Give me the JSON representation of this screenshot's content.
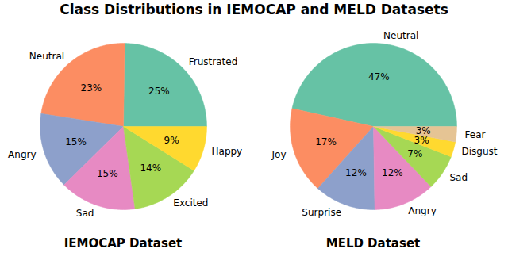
{
  "title": "Class Distributions in IEMOCAP and MELD Datasets",
  "chart_data": [
    {
      "type": "pie",
      "title": "IEMOCAP Dataset",
      "categories": [
        "Frustrated",
        "Neutral",
        "Angry",
        "Sad",
        "Excited",
        "Happy"
      ],
      "values": [
        25,
        23,
        15,
        15,
        14,
        9
      ],
      "value_labels": [
        "25%",
        "23%",
        "15%",
        "15%",
        "14%",
        "9%"
      ],
      "colors": [
        "#66c2a5",
        "#fc8d62",
        "#8da0cb",
        "#e78ac3",
        "#a6d854",
        "#ffd92f"
      ],
      "data_labels": true
    },
    {
      "type": "pie",
      "title": "MELD Dataset",
      "categories": [
        "Neutral",
        "Joy",
        "Surprise",
        "Angry",
        "Sad",
        "Disgust",
        "Fear"
      ],
      "values": [
        47,
        17,
        12,
        12,
        7,
        3,
        3
      ],
      "value_labels": [
        "47%",
        "17%",
        "12%",
        "12%",
        "7%",
        "3%",
        "3%"
      ],
      "colors": [
        "#66c2a5",
        "#fc8d62",
        "#8da0cb",
        "#e78ac3",
        "#a6d854",
        "#ffd92f",
        "#e5c494"
      ],
      "data_labels": true
    }
  ]
}
